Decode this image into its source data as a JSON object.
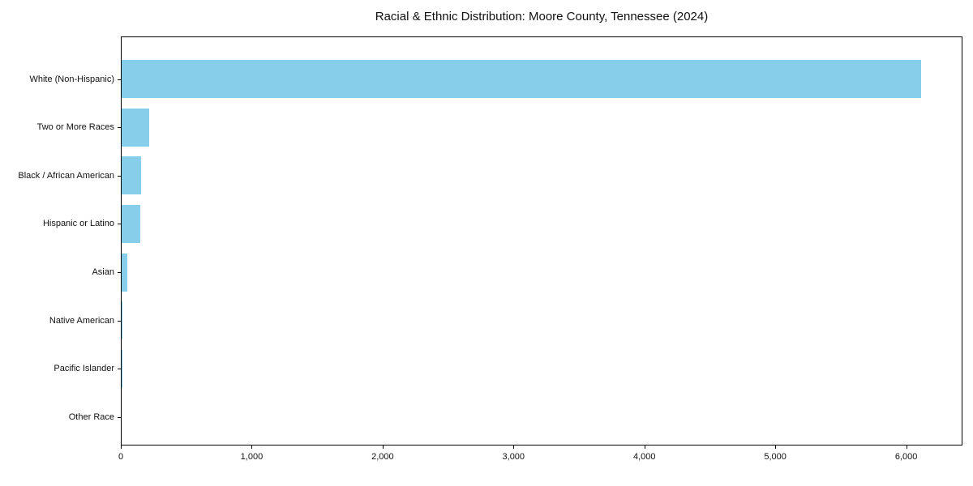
{
  "chart_data": {
    "type": "bar",
    "orientation": "horizontal",
    "title": "Racial & Ethnic Distribution: Moore County, Tennessee (2024)",
    "categories": [
      "White (Non-Hispanic)",
      "Two or More Races",
      "Black / African American",
      "Hispanic or Latino",
      "Asian",
      "Native American",
      "Pacific Islander",
      "Other Race"
    ],
    "values": [
      6118,
      211,
      148,
      140,
      43,
      3,
      1,
      0
    ],
    "bar_color": "#87CEEB",
    "xlabel": "",
    "ylabel": "",
    "xlim": [
      0,
      6430
    ],
    "xticks": [
      0,
      1000,
      2000,
      3000,
      4000,
      5000,
      6000
    ],
    "xtick_labels": [
      "0",
      "1,000",
      "2,000",
      "3,000",
      "4,000",
      "5,000",
      "6,000"
    ],
    "grid": false,
    "legend": false,
    "frame": "full-box",
    "spine_color": "#000000",
    "background": "#ffffff"
  }
}
